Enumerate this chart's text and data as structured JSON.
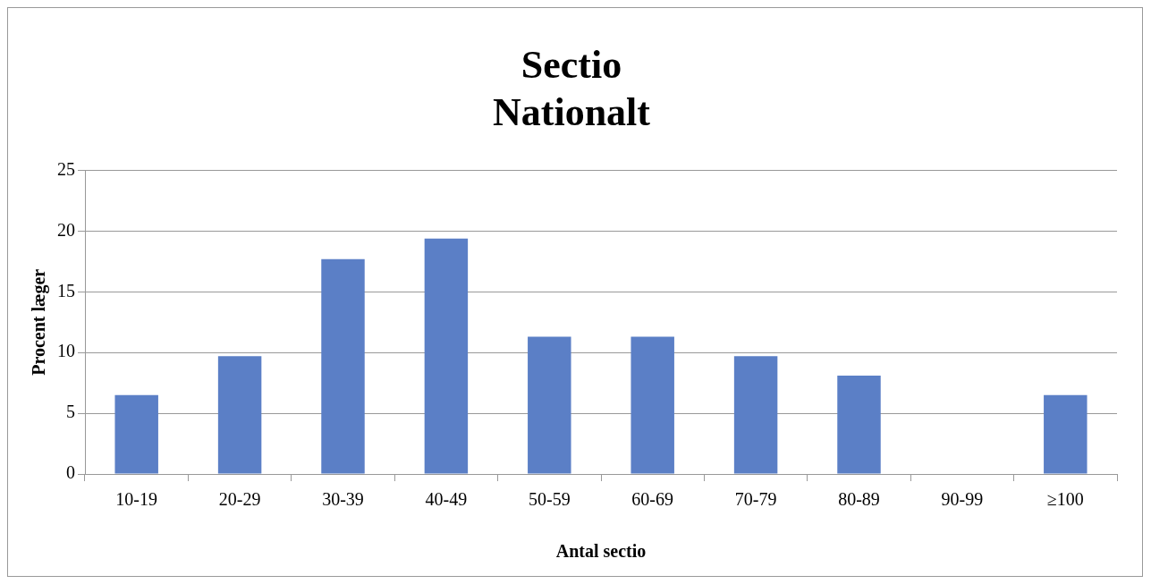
{
  "chart_data": {
    "type": "bar",
    "title": "Sectio",
    "subtitle": "Nationalt",
    "xlabel": "Antal sectio",
    "ylabel": "Procent læger",
    "categories": [
      "10-19",
      "20-29",
      "30-39",
      "40-49",
      "50-59",
      "60-69",
      "70-79",
      "80-89",
      "90-99",
      "≥100"
    ],
    "values": [
      6.5,
      9.7,
      17.7,
      19.4,
      11.3,
      11.3,
      9.7,
      8.1,
      0,
      6.5
    ],
    "color": "#5b7fc6",
    "ylim": [
      0,
      25
    ],
    "yticks": [
      0,
      5,
      10,
      15,
      20,
      25
    ],
    "grid": "y",
    "legend": false
  }
}
